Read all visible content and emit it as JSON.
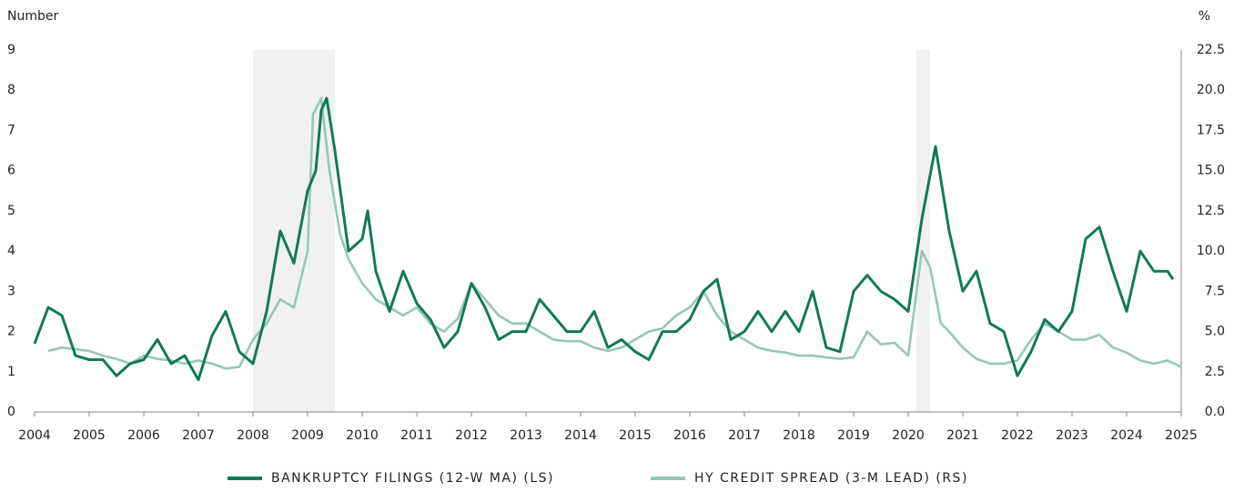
{
  "chart_data": {
    "type": "line",
    "ylabel": "Number",
    "y2label": "%",
    "xlim": [
      2004,
      2025
    ],
    "xticks": [
      2004,
      2005,
      2006,
      2007,
      2008,
      2009,
      2010,
      2011,
      2012,
      2013,
      2014,
      2015,
      2016,
      2017,
      2018,
      2019,
      2020,
      2021,
      2022,
      2023,
      2024,
      2025
    ],
    "ylim": [
      0,
      9
    ],
    "yticks": [
      0,
      1,
      2,
      3,
      4,
      5,
      6,
      7,
      8,
      9
    ],
    "y2lim": [
      0,
      22.5
    ],
    "y2ticks": [
      {
        "value": 0,
        "label": "0.0"
      },
      2.5,
      {
        "value": 5,
        "label": "5.0"
      },
      7.5,
      {
        "value": 10,
        "label": "10.0"
      },
      12.5,
      {
        "value": 15,
        "label": "15.0"
      },
      17.5,
      {
        "value": 20,
        "label": "20.0"
      },
      22.5
    ],
    "shading": [
      [
        2008,
        2009.5
      ],
      [
        2020.15,
        2020.4
      ]
    ],
    "series": [
      {
        "name": "BANKRUPTCY FILINGS (12-W MA) (LS)",
        "color": "#13795b",
        "x": [
          2004,
          2004.25,
          2004.5,
          2004.75,
          2005,
          2005.25,
          2005.5,
          2005.75,
          2006,
          2006.25,
          2006.5,
          2006.75,
          2007,
          2007.25,
          2007.5,
          2007.75,
          2008,
          2008.25,
          2008.5,
          2008.75,
          2009,
          2009.15,
          2009.25,
          2009.35,
          2009.5,
          2009.75,
          2010,
          2010.1,
          2010.25,
          2010.5,
          2010.75,
          2011,
          2011.25,
          2011.5,
          2011.75,
          2012,
          2012.25,
          2012.5,
          2012.75,
          2013,
          2013.25,
          2013.5,
          2013.75,
          2014,
          2014.25,
          2014.5,
          2014.75,
          2015,
          2015.25,
          2015.5,
          2015.75,
          2016,
          2016.25,
          2016.5,
          2016.75,
          2017,
          2017.25,
          2017.5,
          2017.75,
          2018,
          2018.25,
          2018.5,
          2018.75,
          2019,
          2019.25,
          2019.5,
          2019.75,
          2020,
          2020.25,
          2020.5,
          2020.75,
          2021,
          2021.25,
          2021.5,
          2021.75,
          2022,
          2022.25,
          2022.5,
          2022.75,
          2023,
          2023.25,
          2023.5,
          2023.75,
          2024,
          2024.25,
          2024.5,
          2024.75,
          2024.85
        ],
        "values": [
          1.7,
          2.6,
          2.4,
          1.4,
          1.3,
          1.3,
          0.9,
          1.2,
          1.3,
          1.8,
          1.2,
          1.4,
          0.8,
          1.9,
          2.5,
          1.5,
          1.2,
          2.5,
          4.5,
          3.7,
          5.5,
          6.0,
          7.5,
          7.8,
          6.5,
          4.0,
          4.3,
          5.0,
          3.5,
          2.5,
          3.5,
          2.7,
          2.3,
          1.6,
          2.0,
          3.2,
          2.6,
          1.8,
          2.0,
          2.0,
          2.8,
          2.4,
          2.0,
          2.0,
          2.5,
          1.6,
          1.8,
          1.5,
          1.3,
          2.0,
          2.0,
          2.3,
          3.0,
          3.3,
          1.8,
          2.0,
          2.5,
          2.0,
          2.5,
          2.0,
          3.0,
          1.6,
          1.5,
          3.0,
          3.4,
          3.0,
          2.8,
          2.5,
          4.8,
          6.6,
          4.5,
          3.0,
          3.5,
          2.2,
          2.0,
          0.9,
          1.5,
          2.3,
          2.0,
          2.5,
          4.3,
          4.6,
          3.5,
          2.5,
          4.0,
          3.5,
          3.5,
          3.3
        ]
      },
      {
        "name": "HY CREDIT SPREAD (3-M LEAD) (RS)",
        "color": "#96c7b9",
        "axis": "y2",
        "x": [
          2004.25,
          2004.5,
          2004.75,
          2005,
          2005.25,
          2005.5,
          2005.75,
          2006,
          2006.25,
          2006.5,
          2006.75,
          2007,
          2007.25,
          2007.5,
          2007.75,
          2008,
          2008.25,
          2008.5,
          2008.75,
          2009,
          2009.1,
          2009.25,
          2009.4,
          2009.6,
          2009.75,
          2010,
          2010.25,
          2010.5,
          2010.75,
          2011,
          2011.25,
          2011.5,
          2011.75,
          2012,
          2012.25,
          2012.5,
          2012.75,
          2013,
          2013.25,
          2013.5,
          2013.75,
          2014,
          2014.25,
          2014.5,
          2014.75,
          2015,
          2015.25,
          2015.5,
          2015.75,
          2016,
          2016.25,
          2016.5,
          2016.75,
          2017,
          2017.25,
          2017.5,
          2017.75,
          2018,
          2018.25,
          2018.5,
          2018.75,
          2019,
          2019.25,
          2019.5,
          2019.75,
          2020,
          2020.25,
          2020.4,
          2020.6,
          2020.75,
          2021,
          2021.25,
          2021.5,
          2021.75,
          2022,
          2022.25,
          2022.5,
          2022.75,
          2023,
          2023.25,
          2023.5,
          2023.75,
          2024,
          2024.25,
          2024.5,
          2024.75,
          2025
        ],
        "values": [
          3.8,
          4.0,
          3.9,
          3.8,
          3.5,
          3.3,
          3.0,
          3.5,
          3.3,
          3.2,
          3.0,
          3.2,
          3.0,
          2.7,
          2.8,
          4.5,
          5.5,
          7.0,
          6.5,
          10.0,
          18.5,
          19.5,
          15.0,
          11.0,
          9.5,
          8.0,
          7.0,
          6.5,
          6.0,
          6.5,
          5.5,
          5.0,
          5.8,
          8.0,
          7.0,
          6.0,
          5.5,
          5.5,
          5.0,
          4.5,
          4.4,
          4.4,
          4.0,
          3.8,
          4.0,
          4.5,
          5.0,
          5.2,
          6.0,
          6.5,
          7.5,
          6.0,
          5.0,
          4.5,
          4.0,
          3.8,
          3.7,
          3.5,
          3.5,
          3.4,
          3.3,
          3.4,
          5.0,
          4.2,
          4.3,
          3.5,
          10.0,
          9.0,
          5.5,
          5.0,
          4.0,
          3.3,
          3.0,
          3.0,
          3.2,
          4.5,
          5.5,
          5.0,
          4.5,
          4.5,
          4.8,
          4.0,
          3.7,
          3.2,
          3.0,
          3.2,
          2.8
        ]
      }
    ]
  }
}
